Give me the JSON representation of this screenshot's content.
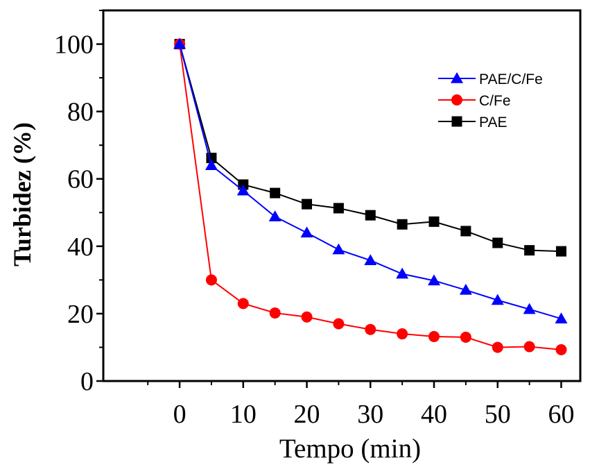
{
  "chart_data": {
    "type": "line",
    "xlabel": "Tempo (min)",
    "ylabel": "Turbidez (%)",
    "xlim": [
      -12,
      63
    ],
    "ylim": [
      0,
      110
    ],
    "xticks": [
      0,
      10,
      20,
      30,
      40,
      50,
      60
    ],
    "yticks": [
      0,
      20,
      40,
      60,
      80,
      100
    ],
    "grid": false,
    "legend_position": "top-right",
    "x": [
      0,
      5,
      10,
      15,
      20,
      25,
      30,
      35,
      40,
      45,
      50,
      55,
      60
    ],
    "series": [
      {
        "name": "PAE/C/Fe",
        "color": "#0000ff",
        "marker": "triangle",
        "values": [
          100,
          64,
          56.5,
          48.8,
          44,
          39,
          35.8,
          31.8,
          29.8,
          27,
          24,
          21.3,
          18.5
        ]
      },
      {
        "name": "C/Fe",
        "color": "#ff0000",
        "marker": "circle",
        "values": [
          100,
          30,
          23,
          20.2,
          19,
          17,
          15.3,
          14,
          13.2,
          13,
          10,
          10.2,
          9.3
        ]
      },
      {
        "name": "PAE",
        "color": "#000000",
        "marker": "square",
        "values": [
          100,
          66.2,
          58.3,
          55.8,
          52.5,
          51.3,
          49.2,
          46.5,
          47.3,
          44.5,
          41,
          38.8,
          38.5
        ]
      }
    ]
  }
}
